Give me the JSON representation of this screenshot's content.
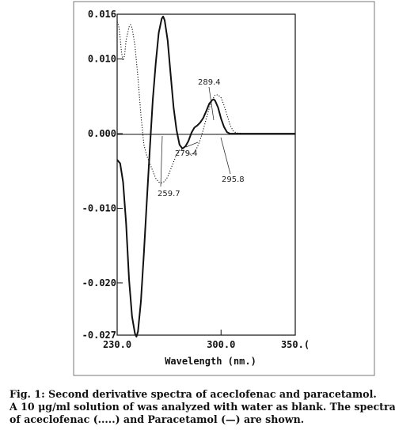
{
  "chart_data": {
    "type": "line",
    "title": "",
    "xlabel": "Wavelength (nm.)",
    "ylabel": "",
    "xlim": [
      230,
      350
    ],
    "ylim": [
      -0.027,
      0.016
    ],
    "x_tick_values": [
      230,
      300,
      350
    ],
    "x_tick_labels": [
      "230.0",
      "300.0",
      "350.("
    ],
    "y_tick_values": [
      0.016,
      0.01,
      0.0,
      -0.01,
      -0.02,
      -0.027
    ],
    "y_tick_labels": [
      "0.016",
      "0.010",
      "0.000",
      "-0.010",
      "-0.020",
      "-0.027"
    ],
    "grid": false,
    "series": [
      {
        "style": "solid",
        "points": [
          [
            230,
            -0.0035
          ],
          [
            232,
            -0.004
          ],
          [
            234,
            -0.0065
          ],
          [
            236,
            -0.012
          ],
          [
            238,
            -0.0195
          ],
          [
            240,
            -0.0245
          ],
          [
            242,
            -0.0268
          ],
          [
            243,
            -0.0272
          ],
          [
            244,
            -0.0265
          ],
          [
            246,
            -0.0225
          ],
          [
            248,
            -0.016
          ],
          [
            250,
            -0.009
          ],
          [
            252,
            -0.002
          ],
          [
            254,
            0.0045
          ],
          [
            256,
            0.0095
          ],
          [
            258,
            0.0135
          ],
          [
            260,
            0.0154
          ],
          [
            261,
            0.0157
          ],
          [
            262,
            0.0152
          ],
          [
            264,
            0.0125
          ],
          [
            266,
            0.008
          ],
          [
            268,
            0.0035
          ],
          [
            270,
            0.0005
          ],
          [
            272,
            -0.0015
          ],
          [
            274,
            -0.002
          ],
          [
            276,
            -0.0017
          ],
          [
            278,
            -0.001
          ],
          [
            280,
            0.0001
          ],
          [
            282,
            0.0008
          ],
          [
            284,
            0.0011
          ],
          [
            286,
            0.0015
          ],
          [
            288,
            0.0021
          ],
          [
            290,
            0.003
          ],
          [
            292,
            0.004
          ],
          [
            294,
            0.0045
          ],
          [
            295,
            0.0046
          ],
          [
            296,
            0.0044
          ],
          [
            298,
            0.0035
          ],
          [
            300,
            0.002
          ],
          [
            302,
            0.0009
          ],
          [
            304,
            0.0002
          ],
          [
            306,
            0.0
          ],
          [
            310,
            0.0
          ],
          [
            320,
            0.0
          ],
          [
            335,
            0.0
          ],
          [
            350,
            0.0
          ]
        ]
      },
      {
        "style": "dotted",
        "points": [
          [
            230,
            0.015
          ],
          [
            231,
            0.0145
          ],
          [
            232,
            0.0128
          ],
          [
            233,
            0.0108
          ],
          [
            234,
            0.0098
          ],
          [
            235,
            0.0105
          ],
          [
            236,
            0.0125
          ],
          [
            238,
            0.0143
          ],
          [
            239,
            0.0146
          ],
          [
            240,
            0.0142
          ],
          [
            242,
            0.0118
          ],
          [
            244,
            0.0075
          ],
          [
            246,
            0.0025
          ],
          [
            248,
            -0.0015
          ],
          [
            250,
            -0.003
          ],
          [
            252,
            -0.004
          ],
          [
            254,
            -0.005
          ],
          [
            256,
            -0.006
          ],
          [
            258,
            -0.0065
          ],
          [
            260,
            -0.0066
          ],
          [
            262,
            -0.0064
          ],
          [
            264,
            -0.0058
          ],
          [
            266,
            -0.0048
          ],
          [
            268,
            -0.0038
          ],
          [
            270,
            -0.0028
          ],
          [
            272,
            -0.0022
          ],
          [
            274,
            -0.0021
          ],
          [
            276,
            -0.0024
          ],
          [
            278,
            -0.0027
          ],
          [
            280,
            -0.0028
          ],
          [
            282,
            -0.0025
          ],
          [
            284,
            -0.0018
          ],
          [
            286,
            -0.0008
          ],
          [
            288,
            0.0005
          ],
          [
            290,
            0.002
          ],
          [
            292,
            0.0034
          ],
          [
            294,
            0.0045
          ],
          [
            296,
            0.0052
          ],
          [
            298,
            0.0052
          ],
          [
            300,
            0.0048
          ],
          [
            302,
            0.0038
          ],
          [
            304,
            0.0025
          ],
          [
            306,
            0.0012
          ],
          [
            308,
            0.0004
          ],
          [
            310,
            0.0001
          ],
          [
            315,
            0.0
          ],
          [
            325,
            0.0
          ],
          [
            350,
            0.0
          ]
        ]
      }
    ],
    "annotations": [
      {
        "text": "289.4",
        "x": 289.4
      },
      {
        "text": "279.4",
        "x": 279.4
      },
      {
        "text": "259.7",
        "x": 259.7
      },
      {
        "text": "295.8",
        "x": 295.8
      }
    ]
  },
  "caption": {
    "line1": "Fig. 1: Second derivative spectra of aceclofenac and paracetamol.",
    "line2": "A 10 μg/ml solution of was analyzed with water as blank. The spectra",
    "line3": "of aceclofenac (.....) and Paracetamol (—) are shown."
  }
}
